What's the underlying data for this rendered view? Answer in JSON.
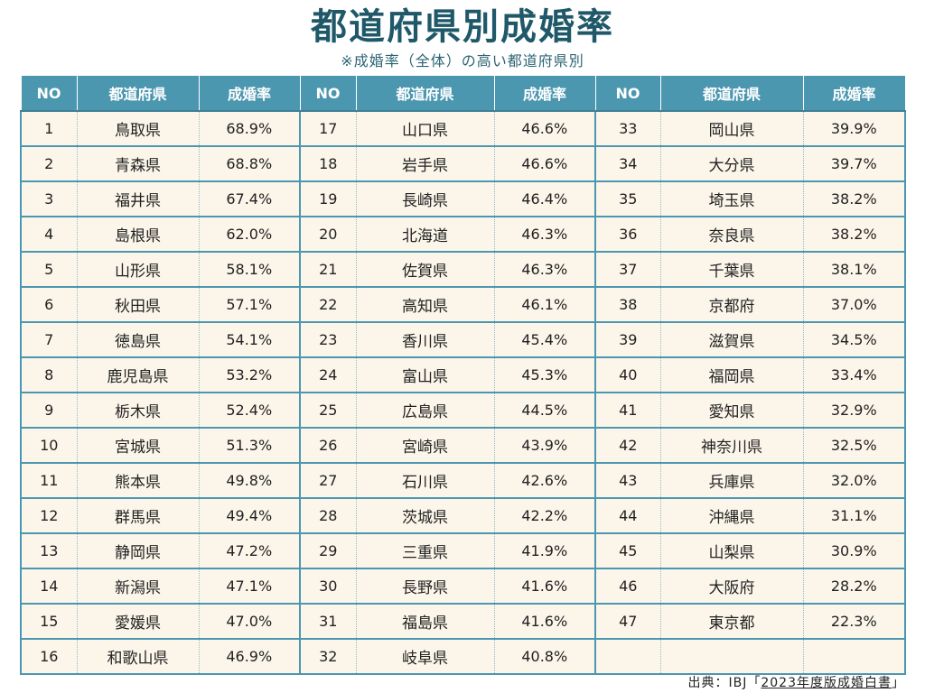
{
  "title": "都道府県別成婚率",
  "subtitle": "※成婚率（全体）の高い都道府県別",
  "headers": {
    "no": "NO",
    "prefecture": "都道府県",
    "rate": "成婚率"
  },
  "rankings": [
    {
      "no": "1",
      "pref": "鳥取県",
      "rate": "68.9%"
    },
    {
      "no": "2",
      "pref": "青森県",
      "rate": "68.8%"
    },
    {
      "no": "3",
      "pref": "福井県",
      "rate": "67.4%"
    },
    {
      "no": "4",
      "pref": "島根県",
      "rate": "62.0%"
    },
    {
      "no": "5",
      "pref": "山形県",
      "rate": "58.1%"
    },
    {
      "no": "6",
      "pref": "秋田県",
      "rate": "57.1%"
    },
    {
      "no": "7",
      "pref": "徳島県",
      "rate": "54.1%"
    },
    {
      "no": "8",
      "pref": "鹿児島県",
      "rate": "53.2%"
    },
    {
      "no": "9",
      "pref": "栃木県",
      "rate": "52.4%"
    },
    {
      "no": "10",
      "pref": "宮城県",
      "rate": "51.3%"
    },
    {
      "no": "11",
      "pref": "熊本県",
      "rate": "49.8%"
    },
    {
      "no": "12",
      "pref": "群馬県",
      "rate": "49.4%"
    },
    {
      "no": "13",
      "pref": "静岡県",
      "rate": "47.2%"
    },
    {
      "no": "14",
      "pref": "新潟県",
      "rate": "47.1%"
    },
    {
      "no": "15",
      "pref": "愛媛県",
      "rate": "47.0%"
    },
    {
      "no": "16",
      "pref": "和歌山県",
      "rate": "46.9%"
    },
    {
      "no": "17",
      "pref": "山口県",
      "rate": "46.6%"
    },
    {
      "no": "18",
      "pref": "岩手県",
      "rate": "46.6%"
    },
    {
      "no": "19",
      "pref": "長崎県",
      "rate": "46.4%"
    },
    {
      "no": "20",
      "pref": "北海道",
      "rate": "46.3%"
    },
    {
      "no": "21",
      "pref": "佐賀県",
      "rate": "46.3%"
    },
    {
      "no": "22",
      "pref": "高知県",
      "rate": "46.1%"
    },
    {
      "no": "23",
      "pref": "香川県",
      "rate": "45.4%"
    },
    {
      "no": "24",
      "pref": "富山県",
      "rate": "45.3%"
    },
    {
      "no": "25",
      "pref": "広島県",
      "rate": "44.5%"
    },
    {
      "no": "26",
      "pref": "宮崎県",
      "rate": "43.9%"
    },
    {
      "no": "27",
      "pref": "石川県",
      "rate": "42.6%"
    },
    {
      "no": "28",
      "pref": "茨城県",
      "rate": "42.2%"
    },
    {
      "no": "29",
      "pref": "三重県",
      "rate": "41.9%"
    },
    {
      "no": "30",
      "pref": "長野県",
      "rate": "41.6%"
    },
    {
      "no": "31",
      "pref": "福島県",
      "rate": "41.6%"
    },
    {
      "no": "32",
      "pref": "岐阜県",
      "rate": "40.8%"
    },
    {
      "no": "33",
      "pref": "岡山県",
      "rate": "39.9%"
    },
    {
      "no": "34",
      "pref": "大分県",
      "rate": "39.7%"
    },
    {
      "no": "35",
      "pref": "埼玉県",
      "rate": "38.2%"
    },
    {
      "no": "36",
      "pref": "奈良県",
      "rate": "38.2%"
    },
    {
      "no": "37",
      "pref": "千葉県",
      "rate": "38.1%"
    },
    {
      "no": "38",
      "pref": "京都府",
      "rate": "37.0%"
    },
    {
      "no": "39",
      "pref": "滋賀県",
      "rate": "34.5%"
    },
    {
      "no": "40",
      "pref": "福岡県",
      "rate": "33.4%"
    },
    {
      "no": "41",
      "pref": "愛知県",
      "rate": "32.9%"
    },
    {
      "no": "42",
      "pref": "神奈川県",
      "rate": "32.5%"
    },
    {
      "no": "43",
      "pref": "兵庫県",
      "rate": "32.0%"
    },
    {
      "no": "44",
      "pref": "沖縄県",
      "rate": "31.1%"
    },
    {
      "no": "45",
      "pref": "山梨県",
      "rate": "30.9%"
    },
    {
      "no": "46",
      "pref": "大阪府",
      "rate": "28.2%"
    },
    {
      "no": "47",
      "pref": "東京都",
      "rate": "22.3%"
    }
  ],
  "source": {
    "prefix": "出典：IBJ「",
    "link_text": "2023年度版成婚白書",
    "suffix": "」"
  },
  "colors": {
    "title": "#1f5868",
    "header_bg": "#4c97b0",
    "cell_bg": "#fcf6ea",
    "border": "#4c97b0"
  }
}
